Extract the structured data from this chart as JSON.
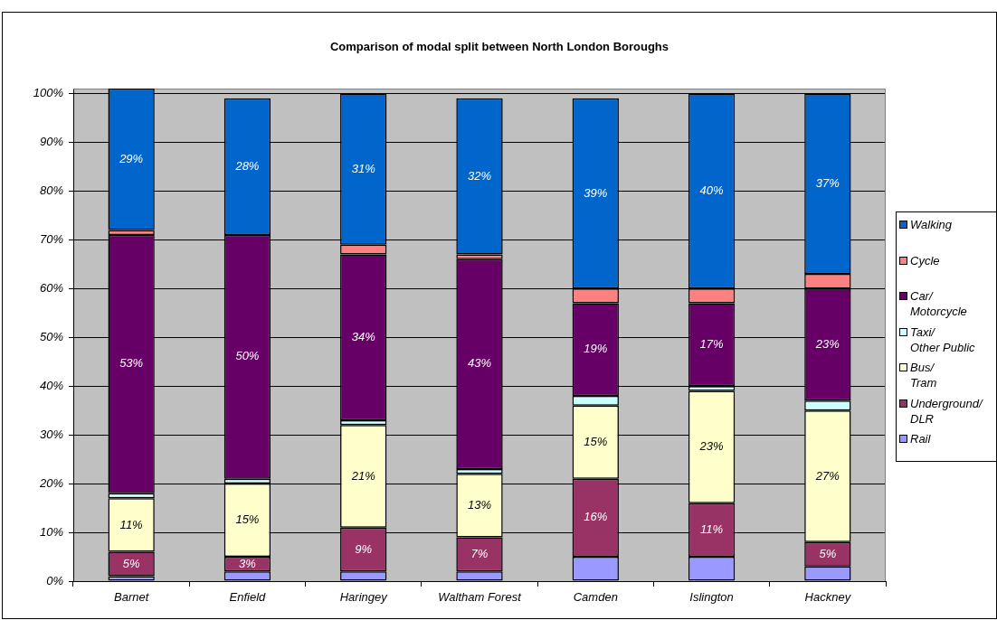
{
  "chart_data": {
    "type": "bar",
    "title": "Comparison of modal split between North London Boroughs",
    "categories": [
      "Barnet",
      "Enfield",
      "Haringey",
      "Waltham Forest",
      "Camden",
      "Islington",
      "Hackney"
    ],
    "stacked": true,
    "ylim": [
      0,
      101
    ],
    "yticks": [
      {
        "value": 0,
        "label": "0%"
      },
      {
        "value": 10,
        "label": "10%"
      },
      {
        "value": 20,
        "label": "20%"
      },
      {
        "value": 30,
        "label": "30%"
      },
      {
        "value": 40,
        "label": "40%"
      },
      {
        "value": 50,
        "label": "50%"
      },
      {
        "value": 60,
        "label": "60%"
      },
      {
        "value": 70,
        "label": "70%"
      },
      {
        "value": 80,
        "label": "80%"
      },
      {
        "value": 90,
        "label": "90%"
      },
      {
        "value": 100,
        "label": "100%"
      }
    ],
    "grid": "y",
    "legend": "right",
    "series": [
      {
        "name": "Rail",
        "color": "#9999ff",
        "values": [
          1,
          2,
          2,
          2,
          5,
          5,
          3
        ]
      },
      {
        "name": "Underground/ DLR",
        "color": "#993366",
        "values": [
          5,
          3,
          9,
          7,
          16,
          11,
          5
        ],
        "value_labels": [
          "5%",
          "3%",
          "9%",
          "7%",
          "16%",
          "11%",
          "5%"
        ]
      },
      {
        "name": "Bus/ Tram",
        "color": "#ffffcc",
        "values": [
          11,
          15,
          21,
          13,
          15,
          23,
          27
        ],
        "value_labels": [
          "11%",
          "15%",
          "21%",
          "13%",
          "15%",
          "23%",
          "27%"
        ]
      },
      {
        "name": "Taxi/ Other Public",
        "color": "#ccffff",
        "values": [
          1,
          1,
          1,
          1,
          2,
          1,
          2
        ]
      },
      {
        "name": "Car/ Motorcycle",
        "color": "#660066",
        "values": [
          53,
          50,
          34,
          43,
          19,
          17,
          23
        ],
        "value_labels": [
          "53%",
          "50%",
          "34%",
          "43%",
          "19%",
          "17%",
          "23%"
        ]
      },
      {
        "name": "Cycle",
        "color": "#ff8080",
        "values": [
          1,
          0,
          2,
          1,
          3,
          3,
          3
        ]
      },
      {
        "name": "Walking",
        "color": "#0066cc",
        "values": [
          29,
          28,
          31,
          32,
          39,
          40,
          37
        ],
        "value_labels": [
          "29%",
          "28%",
          "31%",
          "32%",
          "39%",
          "40%",
          "37%"
        ]
      }
    ]
  }
}
